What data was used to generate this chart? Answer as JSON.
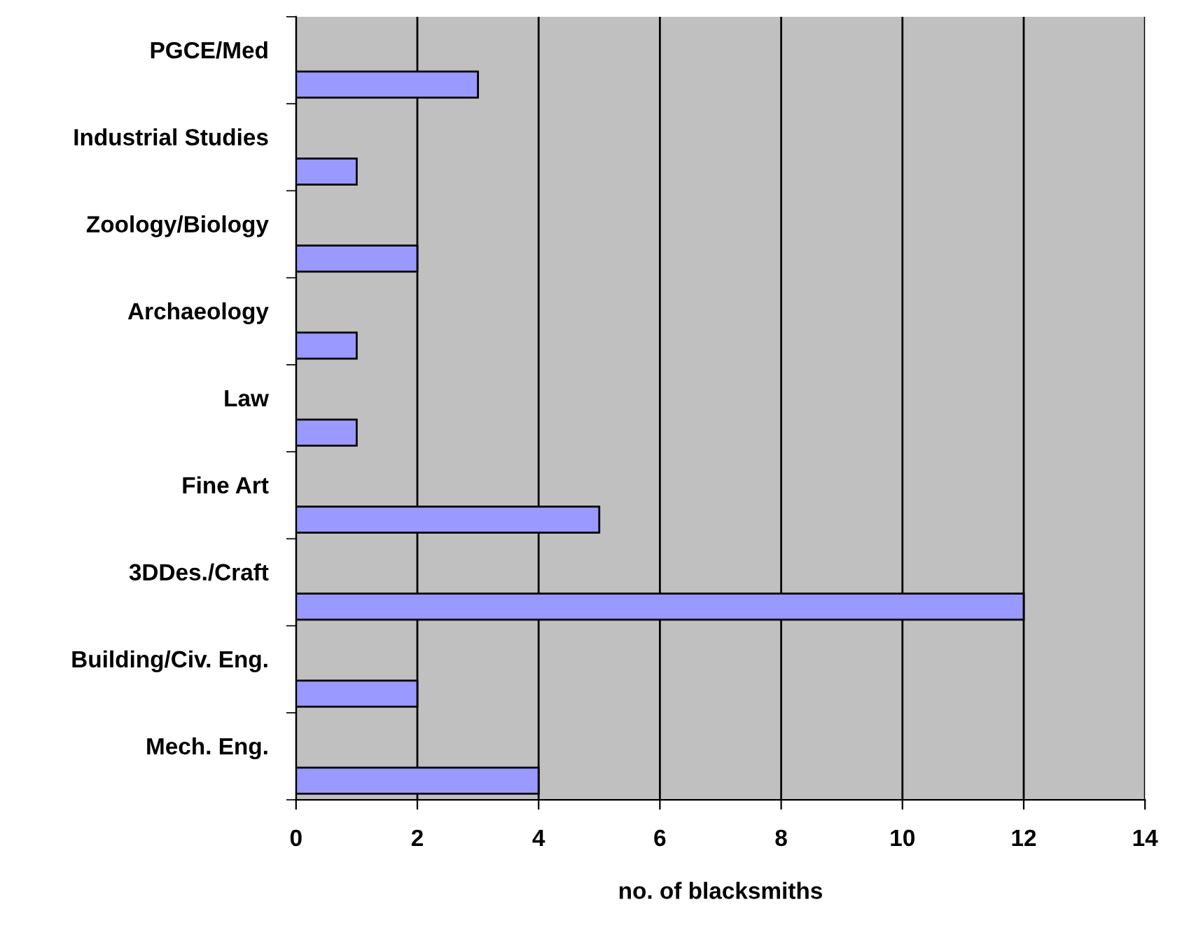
{
  "chart_data": {
    "type": "bar",
    "orientation": "horizontal",
    "xlabel": "no. of blacksmiths",
    "categories": [
      "PGCE/Med",
      "Industrial Studies",
      "Zoology/Biology",
      "Archaeology",
      "Law",
      "Fine Art",
      "3DDes./Craft",
      "Building/Civ. Eng.",
      "Mech. Eng."
    ],
    "values": [
      3,
      1,
      2,
      1,
      1,
      5,
      12,
      2,
      4
    ],
    "color": "#9999ff",
    "xlim": [
      0,
      14
    ],
    "xticks": [
      0,
      2,
      4,
      6,
      8,
      10,
      12,
      14
    ],
    "grid": "x"
  }
}
